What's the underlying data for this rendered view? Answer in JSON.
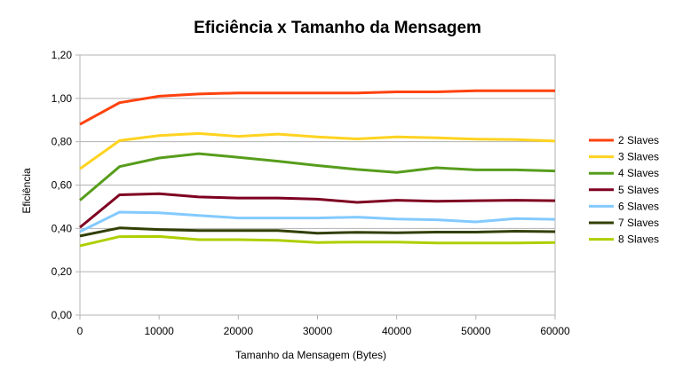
{
  "chart_data": {
    "type": "line",
    "title": "Eficiência x Tamanho da Mensagem",
    "xlabel": "Tamanho da Mensagem (Bytes)",
    "ylabel": "Eficiência",
    "xlim": [
      0,
      60000
    ],
    "ylim": [
      0,
      1.2
    ],
    "x_ticks": [
      "0",
      "10000",
      "20000",
      "30000",
      "40000",
      "50000",
      "60000"
    ],
    "y_ticks": [
      "0,00",
      "0,20",
      "0,40",
      "0,60",
      "0,80",
      "1,00",
      "1,20"
    ],
    "grid": "horizontal",
    "legend_position": "right",
    "x": [
      0,
      5000,
      10000,
      15000,
      20000,
      25000,
      30000,
      35000,
      40000,
      45000,
      50000,
      55000,
      60000
    ],
    "series": [
      {
        "name": "2 Slaves",
        "color": "#ff420e",
        "values": [
          0.88,
          0.98,
          1.01,
          1.02,
          1.025,
          1.025,
          1.025,
          1.025,
          1.03,
          1.03,
          1.035,
          1.035,
          1.035
        ]
      },
      {
        "name": "3 Slaves",
        "color": "#ffd320",
        "values": [
          0.675,
          0.805,
          0.828,
          0.838,
          0.825,
          0.835,
          0.822,
          0.813,
          0.822,
          0.818,
          0.812,
          0.81,
          0.803
        ]
      },
      {
        "name": "4 Slaves",
        "color": "#579d1c",
        "values": [
          0.53,
          0.685,
          0.725,
          0.745,
          0.728,
          0.71,
          0.69,
          0.672,
          0.658,
          0.68,
          0.67,
          0.67,
          0.665
        ]
      },
      {
        "name": "5 Slaves",
        "color": "#7e0021",
        "values": [
          0.405,
          0.555,
          0.56,
          0.545,
          0.54,
          0.54,
          0.535,
          0.52,
          0.53,
          0.525,
          0.528,
          0.53,
          0.528
        ]
      },
      {
        "name": "6 Slaves",
        "color": "#83caff",
        "values": [
          0.385,
          0.475,
          0.472,
          0.46,
          0.448,
          0.448,
          0.448,
          0.452,
          0.443,
          0.44,
          0.43,
          0.445,
          0.442
        ]
      },
      {
        "name": "7 Slaves",
        "color": "#314004",
        "values": [
          0.365,
          0.402,
          0.395,
          0.39,
          0.39,
          0.39,
          0.378,
          0.382,
          0.38,
          0.383,
          0.383,
          0.387,
          0.385
        ]
      },
      {
        "name": "8 Slaves",
        "color": "#aecf00",
        "values": [
          0.32,
          0.362,
          0.363,
          0.348,
          0.348,
          0.345,
          0.335,
          0.337,
          0.337,
          0.333,
          0.333,
          0.333,
          0.335
        ]
      }
    ]
  }
}
